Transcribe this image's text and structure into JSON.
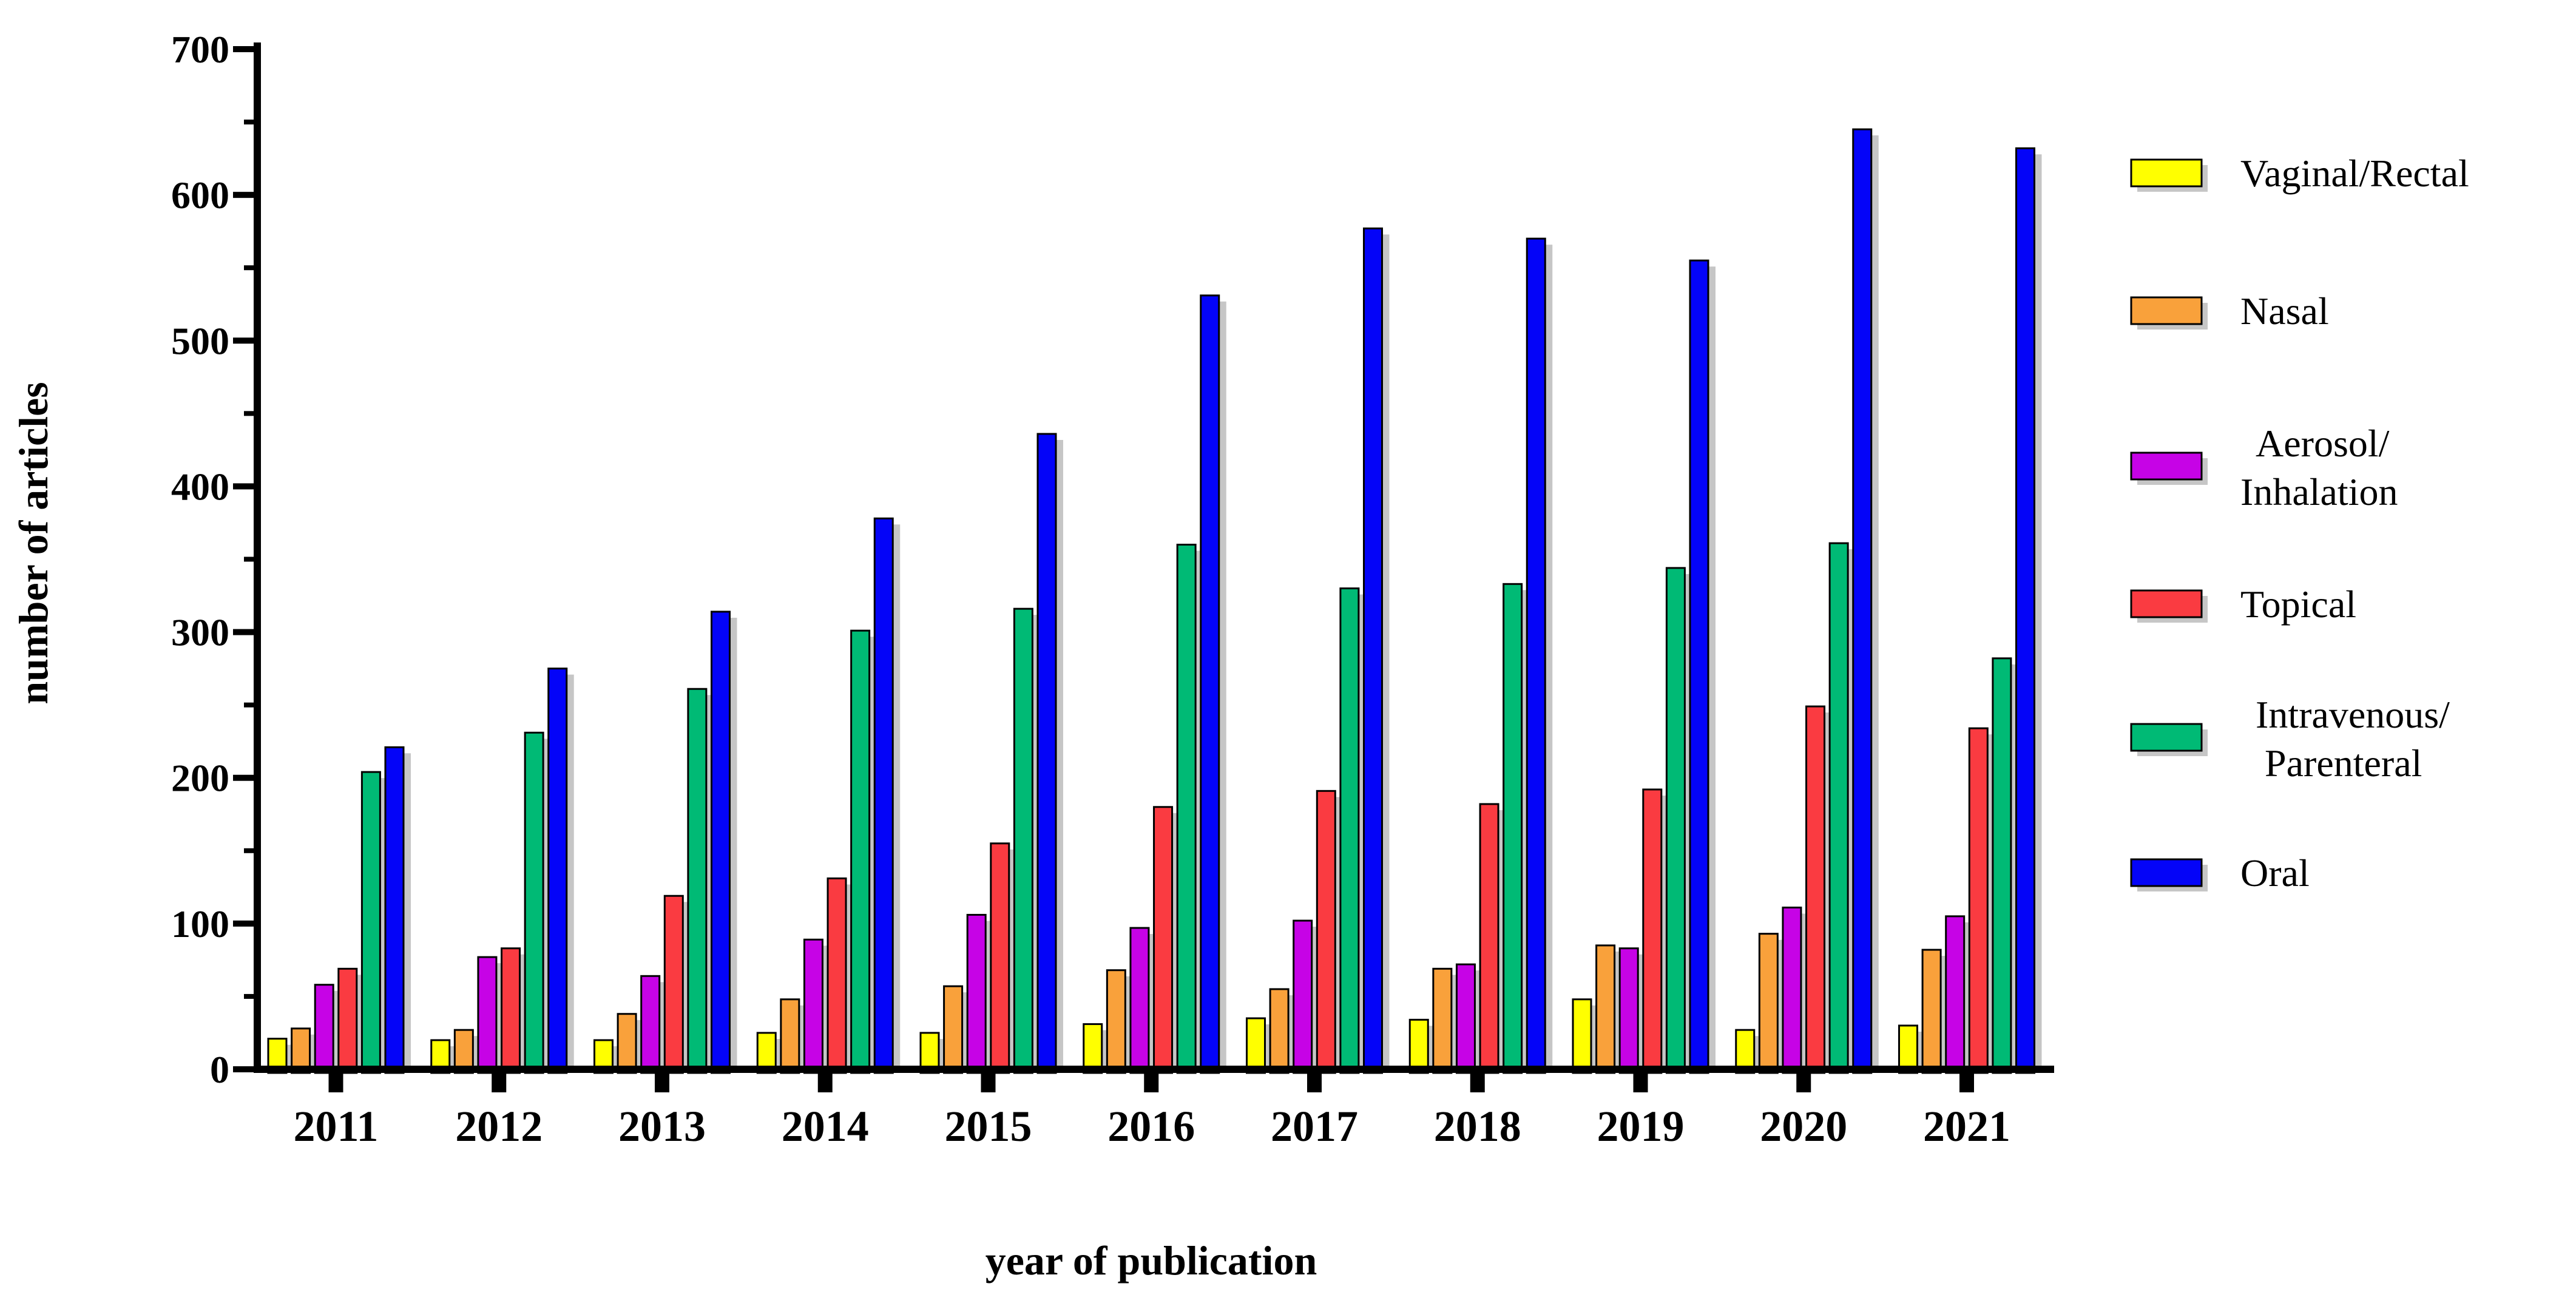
{
  "chart_data": {
    "type": "bar",
    "title": "",
    "xlabel": "year of publication",
    "ylabel": "number of articles",
    "categories": [
      "2011",
      "2012",
      "2013",
      "2014",
      "2015",
      "2016",
      "2017",
      "2018",
      "2019",
      "2020",
      "2021"
    ],
    "ylim": [
      0,
      700
    ],
    "ytick_step": 100,
    "yminor_step": 50,
    "grid": false,
    "legend_position": "right",
    "series": [
      {
        "name": "Vaginal/Rectal",
        "color": "#FFFF00",
        "values": [
          21,
          20,
          20,
          25,
          25,
          31,
          35,
          34,
          48,
          27,
          30
        ]
      },
      {
        "name": "Nasal",
        "color": "#F9A13B",
        "values": [
          28,
          27,
          38,
          48,
          57,
          68,
          55,
          69,
          85,
          93,
          82
        ]
      },
      {
        "name": "Aerosol/Inhalation",
        "color": "#C603E6",
        "values": [
          58,
          77,
          64,
          89,
          106,
          97,
          102,
          72,
          83,
          111,
          105
        ]
      },
      {
        "name": "Topical",
        "color": "#FA3B41",
        "values": [
          69,
          83,
          119,
          131,
          155,
          180,
          191,
          182,
          192,
          249,
          234
        ]
      },
      {
        "name": "Intravenous/Parenteral",
        "color": "#00BA75",
        "values": [
          204,
          231,
          261,
          301,
          316,
          360,
          330,
          333,
          344,
          361,
          282
        ]
      },
      {
        "name": "Oral",
        "color": "#0404F8",
        "values": [
          221,
          275,
          314,
          378,
          436,
          531,
          577,
          570,
          555,
          645,
          632
        ]
      }
    ],
    "legend": [
      {
        "series": "Vaginal/Rectal",
        "lines": [
          "Vaginal/Rectal"
        ]
      },
      {
        "series": "Nasal",
        "lines": [
          "Nasal"
        ]
      },
      {
        "series": "Aerosol/Inhalation",
        "lines": [
          "Aerosol/",
          "Inhalation"
        ]
      },
      {
        "series": "Topical",
        "lines": [
          "Topical"
        ]
      },
      {
        "series": "Intravenous/Parenteral",
        "lines": [
          "Intravenous/",
          "Parenteral"
        ]
      },
      {
        "series": "Oral",
        "lines": [
          "Oral"
        ]
      }
    ],
    "colors": {
      "bar_outline": "#000000",
      "bar_shadow": "#C6C6C6",
      "axis": "#000000",
      "background": "#FFFFFF"
    }
  }
}
